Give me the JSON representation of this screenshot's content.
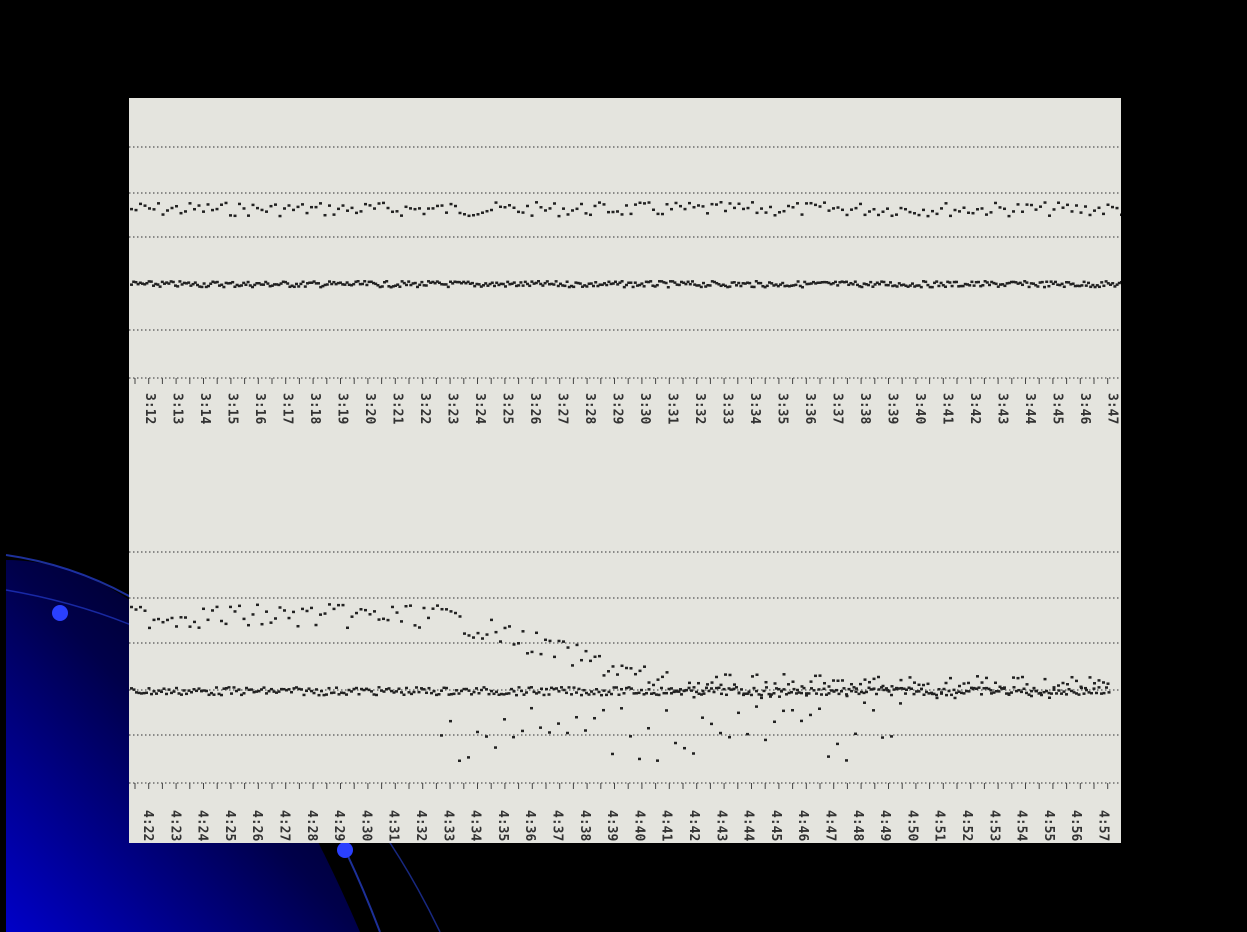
{
  "top_strip": {
    "time_labels": [
      "3:12",
      "3:13",
      "3:14",
      "3:15",
      "3:16",
      "3:17",
      "3:18",
      "3:19",
      "3:20",
      "3:21",
      "3:22",
      "3:23",
      "3:24",
      "3:25",
      "3:26",
      "3:27",
      "3:28",
      "3:29",
      "3:30",
      "3:31",
      "3:32",
      "3:33",
      "3:34",
      "3:35",
      "3:36",
      "3:37",
      "3:38",
      "3:39",
      "3:40",
      "3:41",
      "3:42",
      "3:43",
      "3:44",
      "3:45",
      "3:46",
      "3:47"
    ]
  },
  "bottom_strip": {
    "time_labels": [
      "4:22",
      "4:23",
      "4:24",
      "4:25",
      "4:26",
      "4:27",
      "4:28",
      "4:29",
      "4:30",
      "4:31",
      "4:32",
      "4:33",
      "4:34",
      "4:35",
      "4:36",
      "4:37",
      "4:38",
      "4:39",
      "4:40",
      "4:41",
      "4:42",
      "4:43",
      "4:44",
      "4:45",
      "4:46",
      "4:47",
      "4:48",
      "4:49",
      "4:50",
      "4:51",
      "4:52",
      "4:53",
      "4:54",
      "4:55",
      "4:56",
      "4:57"
    ]
  }
}
